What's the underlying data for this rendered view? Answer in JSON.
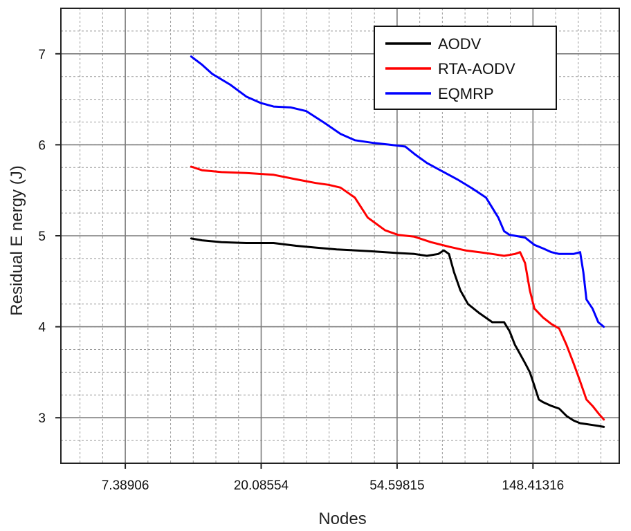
{
  "chart_data": {
    "type": "line",
    "xlabel": "Nodes",
    "ylabel": "Residual E nergy (J)",
    "xscale": "log",
    "xlim": [
      4.6,
      280
    ],
    "ylim": [
      2.5,
      7.5
    ],
    "x_ticks": [
      7.38906,
      20.08554,
      54.59815,
      148.41316
    ],
    "x_tick_labels": [
      "7.38906",
      "20.08554",
      "54.59815",
      "148.41316"
    ],
    "y_ticks": [
      3,
      4,
      5,
      6,
      7
    ],
    "y_tick_labels": [
      "3",
      "4",
      "5",
      "6",
      "7"
    ],
    "grid": "major and minor, dashed",
    "legend_position": "top-right",
    "series": [
      {
        "name": "AODV",
        "color": "#000000",
        "x": [
          12,
          13,
          15,
          18,
          22,
          26,
          30,
          35,
          40,
          45,
          50,
          55,
          62,
          68,
          74,
          77,
          80,
          83,
          87,
          92,
          100,
          110,
          120,
          125,
          130,
          135,
          140,
          145,
          150,
          155,
          160,
          170,
          180,
          190,
          200,
          210,
          220,
          230,
          240,
          250
        ],
        "y": [
          4.97,
          4.95,
          4.93,
          4.92,
          4.92,
          4.89,
          4.87,
          4.85,
          4.84,
          4.83,
          4.82,
          4.81,
          4.8,
          4.78,
          4.8,
          4.84,
          4.8,
          4.6,
          4.4,
          4.25,
          4.15,
          4.05,
          4.05,
          3.95,
          3.8,
          3.7,
          3.6,
          3.5,
          3.35,
          3.2,
          3.17,
          3.13,
          3.1,
          3.02,
          2.97,
          2.94,
          2.93,
          2.92,
          2.91,
          2.9
        ]
      },
      {
        "name": "RTA-AODV",
        "color": "#ff0000",
        "x": [
          12,
          13,
          15,
          18,
          22,
          26,
          30,
          33,
          36,
          40,
          44,
          50,
          55,
          62,
          70,
          80,
          90,
          100,
          110,
          120,
          130,
          135,
          140,
          145,
          150,
          160,
          170,
          180,
          190,
          200,
          210,
          220,
          230,
          240,
          250
        ],
        "y": [
          5.76,
          5.72,
          5.7,
          5.69,
          5.67,
          5.62,
          5.58,
          5.56,
          5.53,
          5.42,
          5.2,
          5.06,
          5.01,
          4.99,
          4.93,
          4.88,
          4.84,
          4.82,
          4.8,
          4.78,
          4.8,
          4.82,
          4.7,
          4.4,
          4.2,
          4.1,
          4.03,
          3.98,
          3.8,
          3.6,
          3.4,
          3.2,
          3.13,
          3.05,
          2.98
        ]
      },
      {
        "name": "EQMRP",
        "color": "#0000ff",
        "x": [
          12,
          13,
          14,
          16,
          18,
          20,
          22,
          25,
          28,
          32,
          36,
          40,
          46,
          52,
          58,
          62,
          68,
          75,
          85,
          95,
          105,
          115,
          120,
          125,
          130,
          140,
          150,
          160,
          170,
          180,
          190,
          200,
          210,
          215,
          220,
          230,
          240,
          250
        ],
        "y": [
          6.97,
          6.88,
          6.78,
          6.66,
          6.53,
          6.46,
          6.42,
          6.41,
          6.37,
          6.24,
          6.12,
          6.05,
          6.02,
          6.0,
          5.98,
          5.9,
          5.8,
          5.72,
          5.62,
          5.52,
          5.42,
          5.2,
          5.05,
          5.01,
          5.0,
          4.98,
          4.9,
          4.86,
          4.82,
          4.8,
          4.8,
          4.8,
          4.82,
          4.6,
          4.3,
          4.2,
          4.05,
          4.0
        ]
      }
    ]
  }
}
